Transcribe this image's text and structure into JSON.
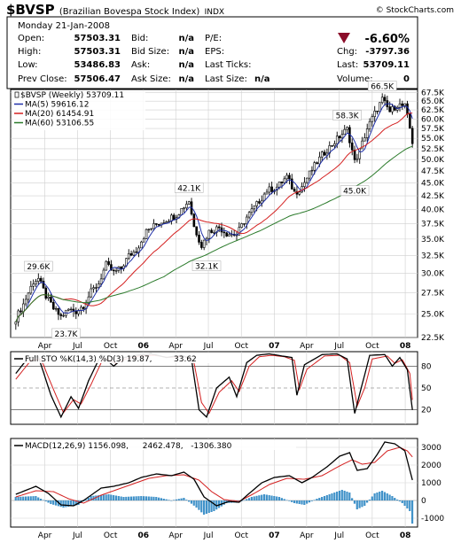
{
  "header": {
    "symbol": "$BVSP",
    "name": "(Brazilian Bovespa Stock Index)",
    "exchange": "INDX",
    "copyright": "© StockCharts.com",
    "date": "Monday   21-Jan-2008",
    "change_pct": "-6.60%",
    "arrow_color": "#8b0d2a",
    "fields": [
      {
        "label": "Open:",
        "value": "57503.31"
      },
      {
        "label": "High:",
        "value": "57503.31"
      },
      {
        "label": "Low:",
        "value": "53486.83"
      },
      {
        "label": "Prev Close:",
        "value": "57506.47"
      },
      {
        "label": "Bid:",
        "value": "n/a"
      },
      {
        "label": "Bid Size:",
        "value": "n/a"
      },
      {
        "label": "Ask:",
        "value": "n/a"
      },
      {
        "label": "Ask Size:",
        "value": "n/a"
      },
      {
        "label": "P/E:",
        "value": ""
      },
      {
        "label": "EPS:",
        "value": ""
      },
      {
        "label": "Last Ticks:",
        "value": ""
      },
      {
        "label": "Last Size:",
        "value": "n/a"
      },
      {
        "label": "Chg:",
        "value": "-3797.36"
      },
      {
        "label": "Last:",
        "value": "53709.11"
      },
      {
        "label": "Volume:",
        "value": "0"
      }
    ]
  },
  "chart_data": [
    {
      "type": "candlestick",
      "title": "$BVSP (Weekly) 53709.11",
      "legend": [
        {
          "name": "$BVSP (Weekly) 53709.11",
          "color": "#000000"
        },
        {
          "name": "MA(5) 59616.12",
          "color": "#1f2fa8"
        },
        {
          "name": "MA(20) 61454.91",
          "color": "#d42020"
        },
        {
          "name": "MA(60) 53106.55",
          "color": "#2a7a2a"
        }
      ],
      "y_scale": "log",
      "ylim": [
        22500,
        68500
      ],
      "y_ticks": [
        "22.5K",
        "25.0K",
        "27.5K",
        "30.0K",
        "32.5K",
        "35.0K",
        "37.5K",
        "40.0K",
        "42.5K",
        "45.0K",
        "47.5K",
        "50.0K",
        "52.5K",
        "55.0K",
        "57.5K",
        "60.0K",
        "62.5K",
        "65.0K",
        "67.5K"
      ],
      "x_ticks": [
        "Apr",
        "Jul",
        "Oct",
        "06",
        "Apr",
        "Jul",
        "Oct",
        "07",
        "Apr",
        "Jul",
        "Oct",
        "08"
      ],
      "annotations": [
        "29.6K",
        "23.7K",
        "42.1K",
        "32.1K",
        "58.3K",
        "45.0K",
        "66.5K"
      ],
      "close_path": [
        [
          "2005-01-10",
          24500
        ],
        [
          "2005-02-01",
          26200
        ],
        [
          "2005-02-28",
          28900
        ],
        [
          "2005-03-14",
          29300
        ],
        [
          "2005-04-04",
          27100
        ],
        [
          "2005-04-25",
          25600
        ],
        [
          "2005-05-16",
          24700
        ],
        [
          "2005-06-06",
          25500
        ],
        [
          "2005-06-27",
          25300
        ],
        [
          "2005-07-18",
          26000
        ],
        [
          "2005-08-08",
          27600
        ],
        [
          "2005-08-29",
          28700
        ],
        [
          "2005-09-19",
          31200
        ],
        [
          "2005-10-10",
          30100
        ],
        [
          "2005-10-31",
          30700
        ],
        [
          "2005-11-21",
          32500
        ],
        [
          "2005-12-12",
          33300
        ],
        [
          "2006-01-09",
          36200
        ],
        [
          "2006-02-06",
          37400
        ],
        [
          "2006-03-06",
          38200
        ],
        [
          "2006-04-03",
          39000
        ],
        [
          "2006-05-08",
          41600
        ],
        [
          "2006-05-22",
          37000
        ],
        [
          "2006-06-12",
          34000
        ],
        [
          "2006-07-03",
          36200
        ],
        [
          "2006-07-31",
          36900
        ],
        [
          "2006-08-21",
          35900
        ],
        [
          "2006-09-18",
          35700
        ],
        [
          "2006-10-16",
          38600
        ],
        [
          "2006-11-13",
          40900
        ],
        [
          "2006-12-11",
          43500
        ],
        [
          "2007-01-08",
          44200
        ],
        [
          "2007-02-05",
          46300
        ],
        [
          "2007-02-27",
          43000
        ],
        [
          "2007-03-19",
          44300
        ],
        [
          "2007-04-16",
          47800
        ],
        [
          "2007-05-14",
          51000
        ],
        [
          "2007-06-11",
          53500
        ],
        [
          "2007-07-02",
          55500
        ],
        [
          "2007-07-23",
          57300
        ],
        [
          "2007-08-13",
          49500
        ],
        [
          "2007-08-27",
          52000
        ],
        [
          "2007-09-17",
          57500
        ],
        [
          "2007-10-08",
          61500
        ],
        [
          "2007-10-29",
          65500
        ],
        [
          "2007-11-19",
          62000
        ],
        [
          "2007-12-10",
          64000
        ],
        [
          "2007-12-31",
          63500
        ],
        [
          "2008-01-14",
          57500
        ],
        [
          "2008-01-21",
          53709
        ]
      ],
      "ma5_value": 59616.12,
      "ma20_value": 61454.91,
      "ma60_value": 53106.55
    },
    {
      "type": "line",
      "title": "Full STO %K(14,3) %D(3) 19.87, 33.62",
      "legend": [
        {
          "name": "Full STO %K(14,3) %D(3) 19.87,",
          "color": "#000000"
        },
        {
          "name": "33.62",
          "color": "#d42020"
        }
      ],
      "ylim": [
        0,
        100
      ],
      "y_ticks": [
        "80",
        "50",
        "20"
      ],
      "k_path": [
        [
          "2005-01-10",
          70
        ],
        [
          "2005-02-14",
          92
        ],
        [
          "2005-03-14",
          93
        ],
        [
          "2005-04-18",
          40
        ],
        [
          "2005-05-16",
          10
        ],
        [
          "2005-06-13",
          38
        ],
        [
          "2005-07-04",
          22
        ],
        [
          "2005-08-01",
          60
        ],
        [
          "2005-09-05",
          96
        ],
        [
          "2005-10-10",
          80
        ],
        [
          "2005-11-07",
          92
        ],
        [
          "2005-12-12",
          95
        ],
        [
          "2006-01-23",
          97
        ],
        [
          "2006-03-06",
          92
        ],
        [
          "2006-04-17",
          95
        ],
        [
          "2006-05-15",
          90
        ],
        [
          "2006-06-05",
          20
        ],
        [
          "2006-06-26",
          10
        ],
        [
          "2006-07-24",
          50
        ],
        [
          "2006-08-28",
          65
        ],
        [
          "2006-09-18",
          38
        ],
        [
          "2006-10-16",
          85
        ],
        [
          "2006-11-13",
          95
        ],
        [
          "2006-12-18",
          97
        ],
        [
          "2007-01-22",
          94
        ],
        [
          "2007-02-19",
          92
        ],
        [
          "2007-03-05",
          40
        ],
        [
          "2007-03-26",
          82
        ],
        [
          "2007-05-14",
          96
        ],
        [
          "2007-06-25",
          97
        ],
        [
          "2007-07-23",
          90
        ],
        [
          "2007-08-13",
          15
        ],
        [
          "2007-09-03",
          55
        ],
        [
          "2007-09-24",
          95
        ],
        [
          "2007-11-05",
          96
        ],
        [
          "2007-11-26",
          80
        ],
        [
          "2007-12-17",
          92
        ],
        [
          "2008-01-07",
          75
        ],
        [
          "2008-01-21",
          19.87
        ]
      ],
      "d_path": [
        [
          "2005-01-10",
          62
        ],
        [
          "2005-02-21",
          88
        ],
        [
          "2005-03-21",
          90
        ],
        [
          "2005-04-25",
          48
        ],
        [
          "2005-05-23",
          16
        ],
        [
          "2005-06-20",
          34
        ],
        [
          "2005-07-11",
          28
        ],
        [
          "2005-08-08",
          55
        ],
        [
          "2005-09-12",
          92
        ],
        [
          "2005-10-17",
          84
        ],
        [
          "2005-11-14",
          90
        ],
        [
          "2005-12-19",
          94
        ],
        [
          "2006-01-30",
          95
        ],
        [
          "2006-03-13",
          92
        ],
        [
          "2006-04-24",
          94
        ],
        [
          "2006-05-22",
          85
        ],
        [
          "2006-06-12",
          30
        ],
        [
          "2006-07-03",
          15
        ],
        [
          "2006-07-31",
          44
        ],
        [
          "2006-09-04",
          60
        ],
        [
          "2006-09-25",
          45
        ],
        [
          "2006-10-23",
          80
        ],
        [
          "2006-11-20",
          93
        ],
        [
          "2006-12-25",
          95
        ],
        [
          "2007-01-29",
          93
        ],
        [
          "2007-02-26",
          88
        ],
        [
          "2007-03-12",
          48
        ],
        [
          "2007-04-02",
          76
        ],
        [
          "2007-05-21",
          94
        ],
        [
          "2007-07-02",
          95
        ],
        [
          "2007-07-30",
          85
        ],
        [
          "2007-08-20",
          25
        ],
        [
          "2007-09-10",
          50
        ],
        [
          "2007-10-01",
          90
        ],
        [
          "2007-11-12",
          94
        ],
        [
          "2007-12-03",
          84
        ],
        [
          "2007-12-24",
          89
        ],
        [
          "2008-01-14",
          70
        ],
        [
          "2008-01-21",
          33.62
        ]
      ]
    },
    {
      "type": "line",
      "title": "MACD(12,26,9) 1156.098, 2462.478, -1306.380",
      "legend": [
        {
          "name": "MACD(12,26,9) 1156.098,",
          "color": "#000000"
        },
        {
          "name": "2462.478,",
          "color": "#d42020"
        },
        {
          "name": "-1306.380",
          "color": "#1f7fbf"
        }
      ],
      "ylim": [
        -1500,
        3500
      ],
      "y_ticks": [
        "3000",
        "2000",
        "1000",
        "0",
        "-1000"
      ],
      "macd_path": [
        [
          "2005-01-10",
          350
        ],
        [
          "2005-03-07",
          800
        ],
        [
          "2005-04-11",
          400
        ],
        [
          "2005-05-16",
          -250
        ],
        [
          "2005-06-20",
          -300
        ],
        [
          "2005-07-18",
          0
        ],
        [
          "2005-09-05",
          700
        ],
        [
          "2005-10-10",
          800
        ],
        [
          "2005-11-21",
          1000
        ],
        [
          "2005-12-26",
          1300
        ],
        [
          "2006-02-06",
          1500
        ],
        [
          "2006-03-20",
          1400
        ],
        [
          "2006-04-24",
          1600
        ],
        [
          "2006-05-22",
          1200
        ],
        [
          "2006-06-19",
          200
        ],
        [
          "2006-07-24",
          -300
        ],
        [
          "2006-08-28",
          -50
        ],
        [
          "2006-09-25",
          -100
        ],
        [
          "2006-10-23",
          400
        ],
        [
          "2006-11-27",
          1000
        ],
        [
          "2007-01-01",
          1300
        ],
        [
          "2007-02-12",
          1400
        ],
        [
          "2007-03-19",
          1000
        ],
        [
          "2007-04-16",
          1300
        ],
        [
          "2007-05-28",
          1900
        ],
        [
          "2007-07-02",
          2500
        ],
        [
          "2007-07-30",
          2700
        ],
        [
          "2007-08-20",
          1700
        ],
        [
          "2007-09-17",
          1800
        ],
        [
          "2007-10-15",
          2600
        ],
        [
          "2007-11-05",
          3300
        ],
        [
          "2007-12-03",
          3200
        ],
        [
          "2007-12-31",
          2800
        ],
        [
          "2008-01-21",
          1156.098
        ]
      ],
      "signal_path": [
        [
          "2005-01-10",
          200
        ],
        [
          "2005-03-07",
          550
        ],
        [
          "2005-04-25",
          500
        ],
        [
          "2005-06-06",
          100
        ],
        [
          "2005-07-18",
          -150
        ],
        [
          "2005-09-05",
          300
        ],
        [
          "2005-10-24",
          650
        ],
        [
          "2005-12-05",
          950
        ],
        [
          "2006-01-16",
          1250
        ],
        [
          "2006-03-06",
          1400
        ],
        [
          "2006-04-24",
          1450
        ],
        [
          "2006-06-05",
          1150
        ],
        [
          "2006-07-10",
          500
        ],
        [
          "2006-08-14",
          50
        ],
        [
          "2006-09-25",
          -50
        ],
        [
          "2006-11-06",
          400
        ],
        [
          "2006-12-18",
          900
        ],
        [
          "2007-02-05",
          1250
        ],
        [
          "2007-03-26",
          1200
        ],
        [
          "2007-05-14",
          1400
        ],
        [
          "2007-07-02",
          1950
        ],
        [
          "2007-08-06",
          2300
        ],
        [
          "2007-09-03",
          2050
        ],
        [
          "2007-10-08",
          2150
        ],
        [
          "2007-11-12",
          2800
        ],
        [
          "2007-12-17",
          3000
        ],
        [
          "2008-01-07",
          2800
        ],
        [
          "2008-01-21",
          2462.478
        ]
      ],
      "hist_path": [
        [
          "2005-01-10",
          200
        ],
        [
          "2005-03-07",
          250
        ],
        [
          "2005-04-18",
          -200
        ],
        [
          "2005-05-23",
          -400
        ],
        [
          "2005-07-04",
          -250
        ],
        [
          "2005-08-08",
          250
        ],
        [
          "2005-09-26",
          350
        ],
        [
          "2005-11-07",
          200
        ],
        [
          "2005-12-26",
          250
        ],
        [
          "2006-02-06",
          200
        ],
        [
          "2006-03-20",
          0
        ],
        [
          "2006-04-24",
          150
        ],
        [
          "2006-05-29",
          -400
        ],
        [
          "2006-06-19",
          -800
        ],
        [
          "2006-07-17",
          -600
        ],
        [
          "2006-08-21",
          -150
        ],
        [
          "2006-09-25",
          -100
        ],
        [
          "2006-10-30",
          200
        ],
        [
          "2006-12-04",
          350
        ],
        [
          "2007-01-15",
          200
        ],
        [
          "2007-02-26",
          -150
        ],
        [
          "2007-03-26",
          -250
        ],
        [
          "2007-04-30",
          100
        ],
        [
          "2007-06-11",
          400
        ],
        [
          "2007-07-09",
          600
        ],
        [
          "2007-07-30",
          450
        ],
        [
          "2007-08-20",
          -500
        ],
        [
          "2007-09-10",
          -300
        ],
        [
          "2007-10-08",
          400
        ],
        [
          "2007-10-29",
          550
        ],
        [
          "2007-11-26",
          250
        ],
        [
          "2007-12-24",
          -150
        ],
        [
          "2008-01-14",
          -600
        ],
        [
          "2008-01-21",
          -1306.38
        ]
      ]
    }
  ]
}
